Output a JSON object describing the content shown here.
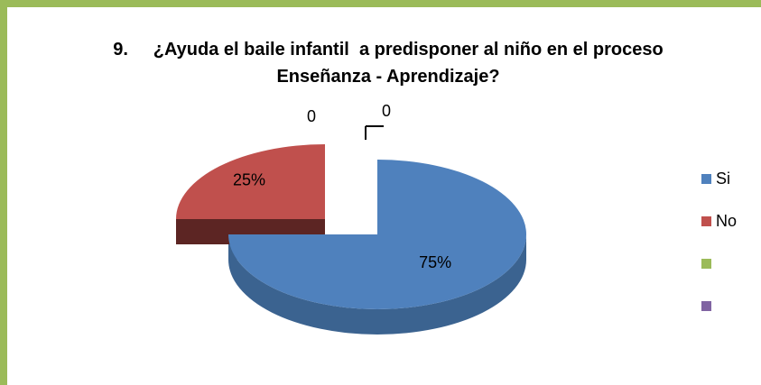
{
  "chart_data": {
    "type": "pie",
    "title": "9.     ¿Ayuda el baile infantil  a predisponer al niño en el proceso  Enseñanza - Aprendizaje?",
    "categories": [
      "Si",
      "No",
      null,
      null
    ],
    "values": [
      75,
      25,
      0,
      0
    ],
    "value_labels": [
      "75%",
      "25%",
      "0",
      "0"
    ],
    "colors": [
      "#4f81bd",
      "#c0504d",
      "#9bbb59",
      "#8064a2"
    ],
    "side_colors": [
      "#3b6390",
      "#5c2523",
      "#6f8a3e",
      "#5b4778"
    ],
    "legend": "right"
  }
}
